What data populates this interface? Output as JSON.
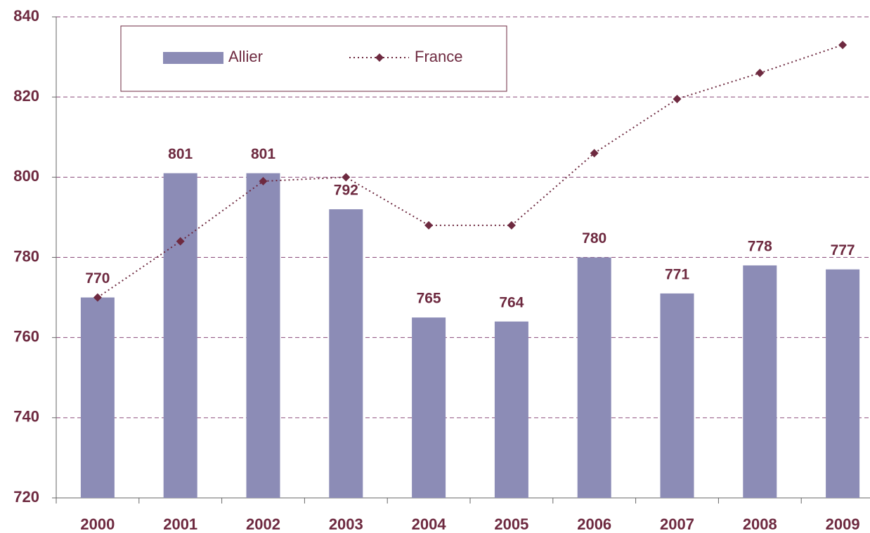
{
  "chart_data": {
    "type": "bar_line",
    "categories": [
      "2000",
      "2001",
      "2002",
      "2003",
      "2004",
      "2005",
      "2006",
      "2007",
      "2008",
      "2009"
    ],
    "series": [
      {
        "name": "Allier",
        "type": "bar",
        "color": "#8c8cb6",
        "values": [
          770,
          801,
          801,
          792,
          765,
          764,
          780,
          771,
          778,
          777
        ]
      },
      {
        "name": "France",
        "type": "line",
        "color": "#6e2a40",
        "values": [
          770,
          784,
          799,
          800,
          788,
          788,
          806,
          819.5,
          826,
          833
        ]
      }
    ],
    "ylim": [
      720,
      840
    ],
    "yticks": [
      720,
      740,
      760,
      780,
      800,
      820,
      840
    ],
    "grid": true
  }
}
